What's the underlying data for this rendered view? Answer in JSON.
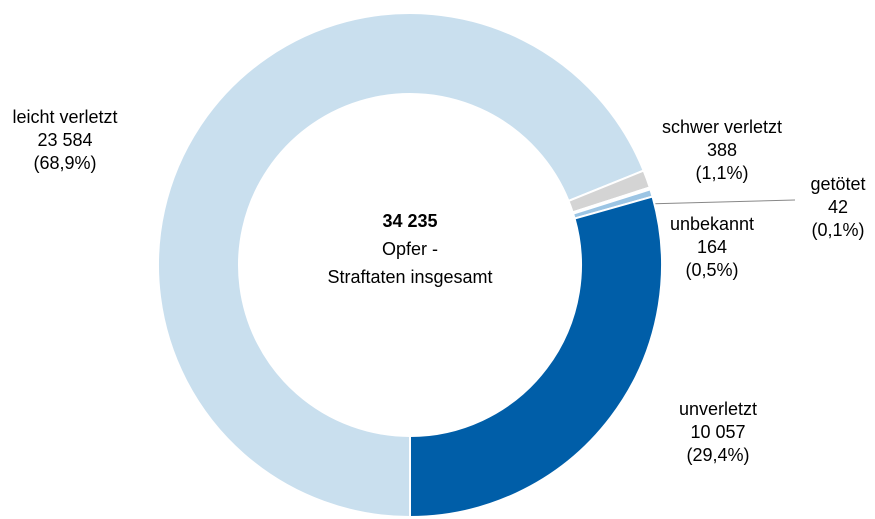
{
  "chart_data": {
    "type": "donut",
    "categories": [
      "leicht verletzt",
      "schwer verletzt",
      "getötet",
      "unbekannt",
      "unverletzt"
    ],
    "values": [
      23584,
      388,
      42,
      164,
      10057
    ],
    "value_labels": [
      "23 584",
      "388",
      "42",
      "164",
      "10 057"
    ],
    "percent_labels": [
      "(68,9%)",
      "(1,1%)",
      "(0,1%)",
      "(0,5%)",
      "(29,4%)"
    ],
    "colors": [
      "#c9dfee",
      "#d4d4d4",
      "#c9dfee",
      "#9cc5e4",
      "#005ea8"
    ],
    "center_lines": [
      "34 235",
      "Opfer -",
      "Straftaten insgesamt"
    ]
  }
}
